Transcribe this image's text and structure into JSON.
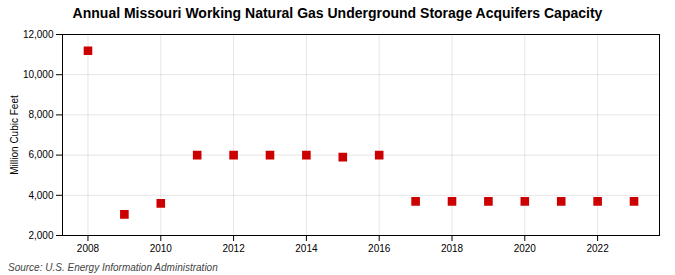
{
  "chart_data": {
    "type": "scatter",
    "title": "Annual Missouri Working Natural Gas Underground Storage Acquifers Capacity",
    "ylabel": "Million Cubic Feet",
    "source": "Source: U.S. Energy Information Administration",
    "x": [
      2008,
      2009,
      2010,
      2011,
      2012,
      2013,
      2014,
      2015,
      2016,
      2017,
      2018,
      2019,
      2020,
      2021,
      2022,
      2023
    ],
    "values": [
      11192,
      3052,
      3600,
      6000,
      6000,
      6000,
      6000,
      5900,
      6000,
      3700,
      3700,
      3700,
      3700,
      3700,
      3700,
      3700
    ],
    "color": "#cc0000",
    "marker": "square",
    "xlim": [
      2007.3,
      2023.7
    ],
    "xticks": [
      2008,
      2010,
      2012,
      2014,
      2016,
      2018,
      2020,
      2022
    ],
    "ylim": [
      2000,
      12000
    ],
    "yticks": [
      {
        "value": 2000,
        "label": "2,000"
      },
      {
        "value": 4000,
        "label": "4,000"
      },
      {
        "value": 6000,
        "label": "6,000"
      },
      {
        "value": 8000,
        "label": "8,000"
      },
      {
        "value": 10000,
        "label": "10,000"
      },
      {
        "value": 12000,
        "label": "12,000"
      }
    ],
    "grid": true
  }
}
